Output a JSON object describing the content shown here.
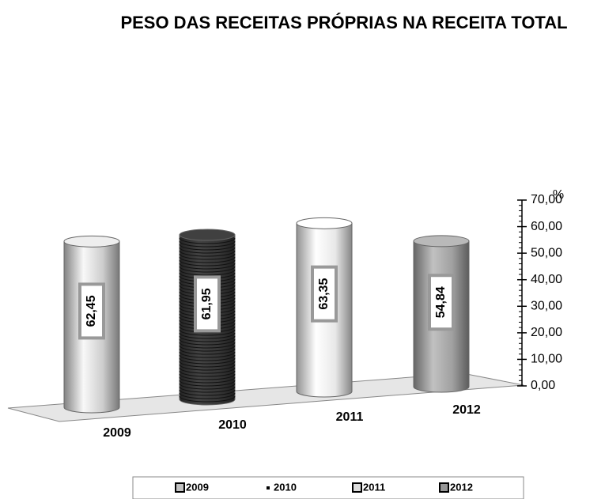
{
  "chart_data": {
    "type": "bar",
    "title": "PESO DAS RECEITAS PRÓPRIAS NA RECEITA TOTAL",
    "y_label": "%",
    "categories": [
      "2009",
      "2010",
      "2011",
      "2012"
    ],
    "values": [
      62.45,
      61.95,
      63.35,
      54.84
    ],
    "value_labels": [
      "62,45",
      "61,95",
      "63,35",
      "54,84"
    ],
    "colors": [
      "#d8d8d8",
      "#3a3a3a",
      "#f4f4f4",
      "#a8a8a8"
    ],
    "ylim": [
      0,
      70
    ],
    "yticks": [
      {
        "value": 0,
        "label": "0,00"
      },
      {
        "value": 10,
        "label": "10,00"
      },
      {
        "value": 20,
        "label": "20,00"
      },
      {
        "value": 30,
        "label": "30,00"
      },
      {
        "value": 40,
        "label": "40,00"
      },
      {
        "value": 50,
        "label": "50,00"
      },
      {
        "value": 60,
        "label": "60,00"
      },
      {
        "value": 70,
        "label": "70,00"
      }
    ],
    "legend": "bottom"
  }
}
